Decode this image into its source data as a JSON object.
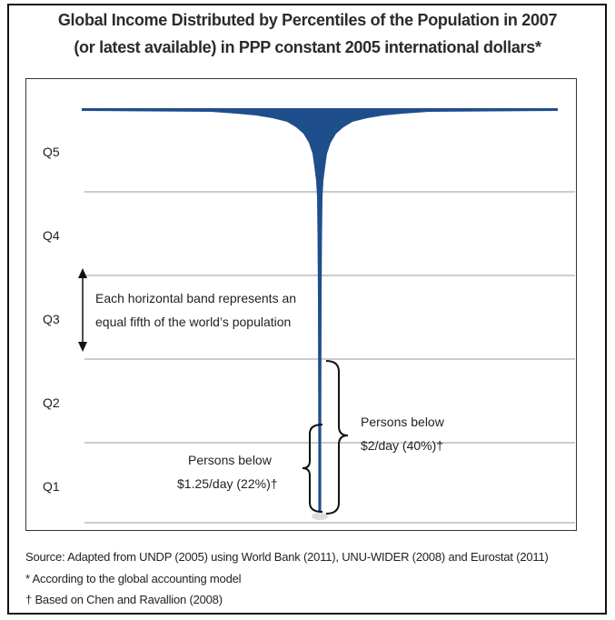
{
  "chart_data": {
    "type": "area",
    "title_line1": "Global Income Distributed by Percentiles of the Population in 2007",
    "title_line2": "(or latest available) in PPP constant 2005 international dollars*",
    "bands": [
      "Q5",
      "Q4",
      "Q3",
      "Q2",
      "Q1"
    ],
    "population_share_per_band": 0.2,
    "shape_color": "#1f4e8c",
    "grid": true,
    "annotations": {
      "band_note_line1": "Each horizontal band represents an",
      "band_note_line2": "equal fifth of the world’s population",
      "below_2_line1": "Persons below",
      "below_2_line2": "$2/day (40%)†",
      "below_125_line1": "Persons below",
      "below_125_line2": "$1.25/day (22%)†"
    }
  },
  "footnotes": {
    "source": "Source: Adapted from UNDP (2005) using World Bank (2011), UNU-WIDER (2008) and Eurostat (2011)",
    "note_star": "* According to the global accounting model",
    "note_dagger": "† Based on Chen and Ravallion (2008)"
  }
}
